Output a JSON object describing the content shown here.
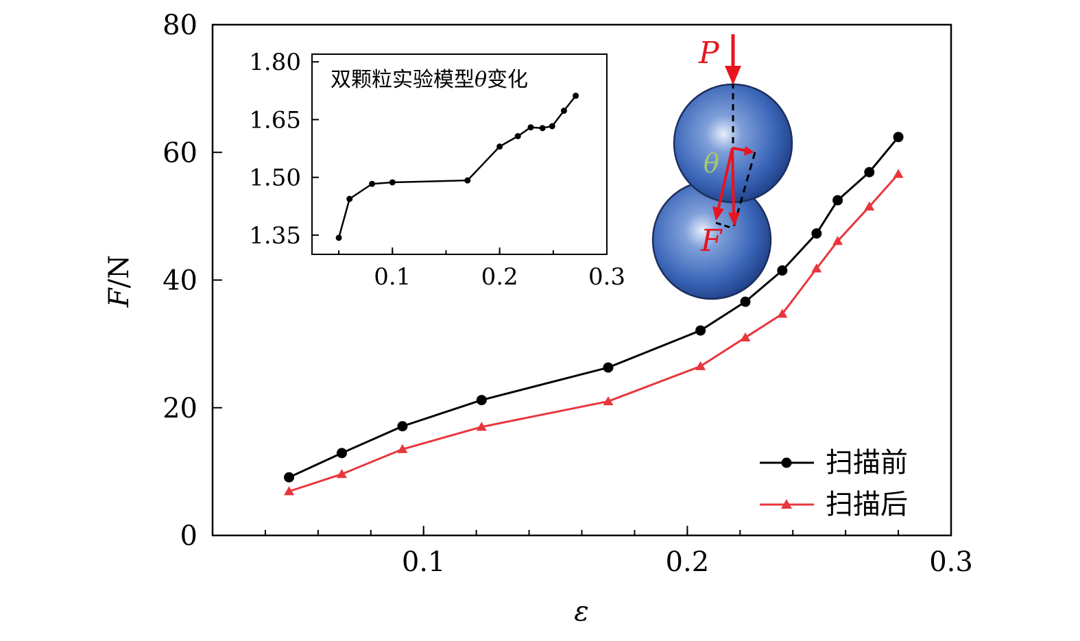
{
  "chart_data": [
    {
      "type": "line",
      "title": "",
      "xlabel": "ε",
      "ylabel_var": "F",
      "ylabel_unit": "/N",
      "xlim": [
        0.02,
        0.3
      ],
      "ylim": [
        0,
        80
      ],
      "xticks": [
        0.1,
        0.2,
        0.3
      ],
      "xtick_labels": [
        "0.1",
        "0.2",
        "0.3"
      ],
      "yticks": [
        0,
        20,
        40,
        60,
        80
      ],
      "ytick_labels": [
        "0",
        "20",
        "40",
        "60",
        "80"
      ],
      "grid": false,
      "legend_position": "bottom-right",
      "series": [
        {
          "name": "扫描前",
          "color": "#000000",
          "marker": "circle",
          "x": [
            0.049,
            0.069,
            0.092,
            0.122,
            0.17,
            0.205,
            0.222,
            0.236,
            0.249,
            0.257,
            0.269,
            0.28
          ],
          "values": [
            9.1,
            12.9,
            17.1,
            21.2,
            26.3,
            32.1,
            36.6,
            41.5,
            47.3,
            52.5,
            56.9,
            62.4
          ]
        },
        {
          "name": "扫描后",
          "color": "#e8363c",
          "marker": "triangle",
          "x": [
            0.049,
            0.069,
            0.092,
            0.122,
            0.17,
            0.205,
            0.222,
            0.236,
            0.249,
            0.257,
            0.269,
            0.28
          ],
          "values": [
            6.9,
            9.6,
            13.5,
            17.0,
            21.0,
            26.5,
            31.0,
            34.7,
            41.8,
            46.1,
            51.5,
            56.6
          ]
        }
      ]
    },
    {
      "type": "line",
      "title_text": "双颗粒实验模型",
      "title_symbol": "θ",
      "title_suffix": "变化",
      "xlim": [
        0.025,
        0.3
      ],
      "ylim": [
        1.3,
        1.82
      ],
      "xticks": [
        0.1,
        0.2,
        0.3
      ],
      "xtick_labels": [
        "0.1",
        "0.2",
        "0.3"
      ],
      "yticks": [
        1.35,
        1.5,
        1.65,
        1.8
      ],
      "ytick_labels": [
        "1.35",
        "1.50",
        "1.65",
        "1.80"
      ],
      "grid": false,
      "series": [
        {
          "name": "θ",
          "color": "#000000",
          "marker": "circle",
          "x": [
            0.05,
            0.06,
            0.081,
            0.1,
            0.17,
            0.2,
            0.217,
            0.229,
            0.24,
            0.249,
            0.26,
            0.271
          ],
          "values": [
            1.343,
            1.444,
            1.483,
            1.487,
            1.492,
            1.58,
            1.607,
            1.63,
            1.628,
            1.633,
            1.673,
            1.712
          ]
        }
      ]
    }
  ],
  "diagram": {
    "load_label": "P",
    "force_label": "F",
    "angle_label": "θ",
    "particle_color": "#3b66b8",
    "arrow_color": "#e8141e",
    "angle_color": "#a6c96a"
  }
}
